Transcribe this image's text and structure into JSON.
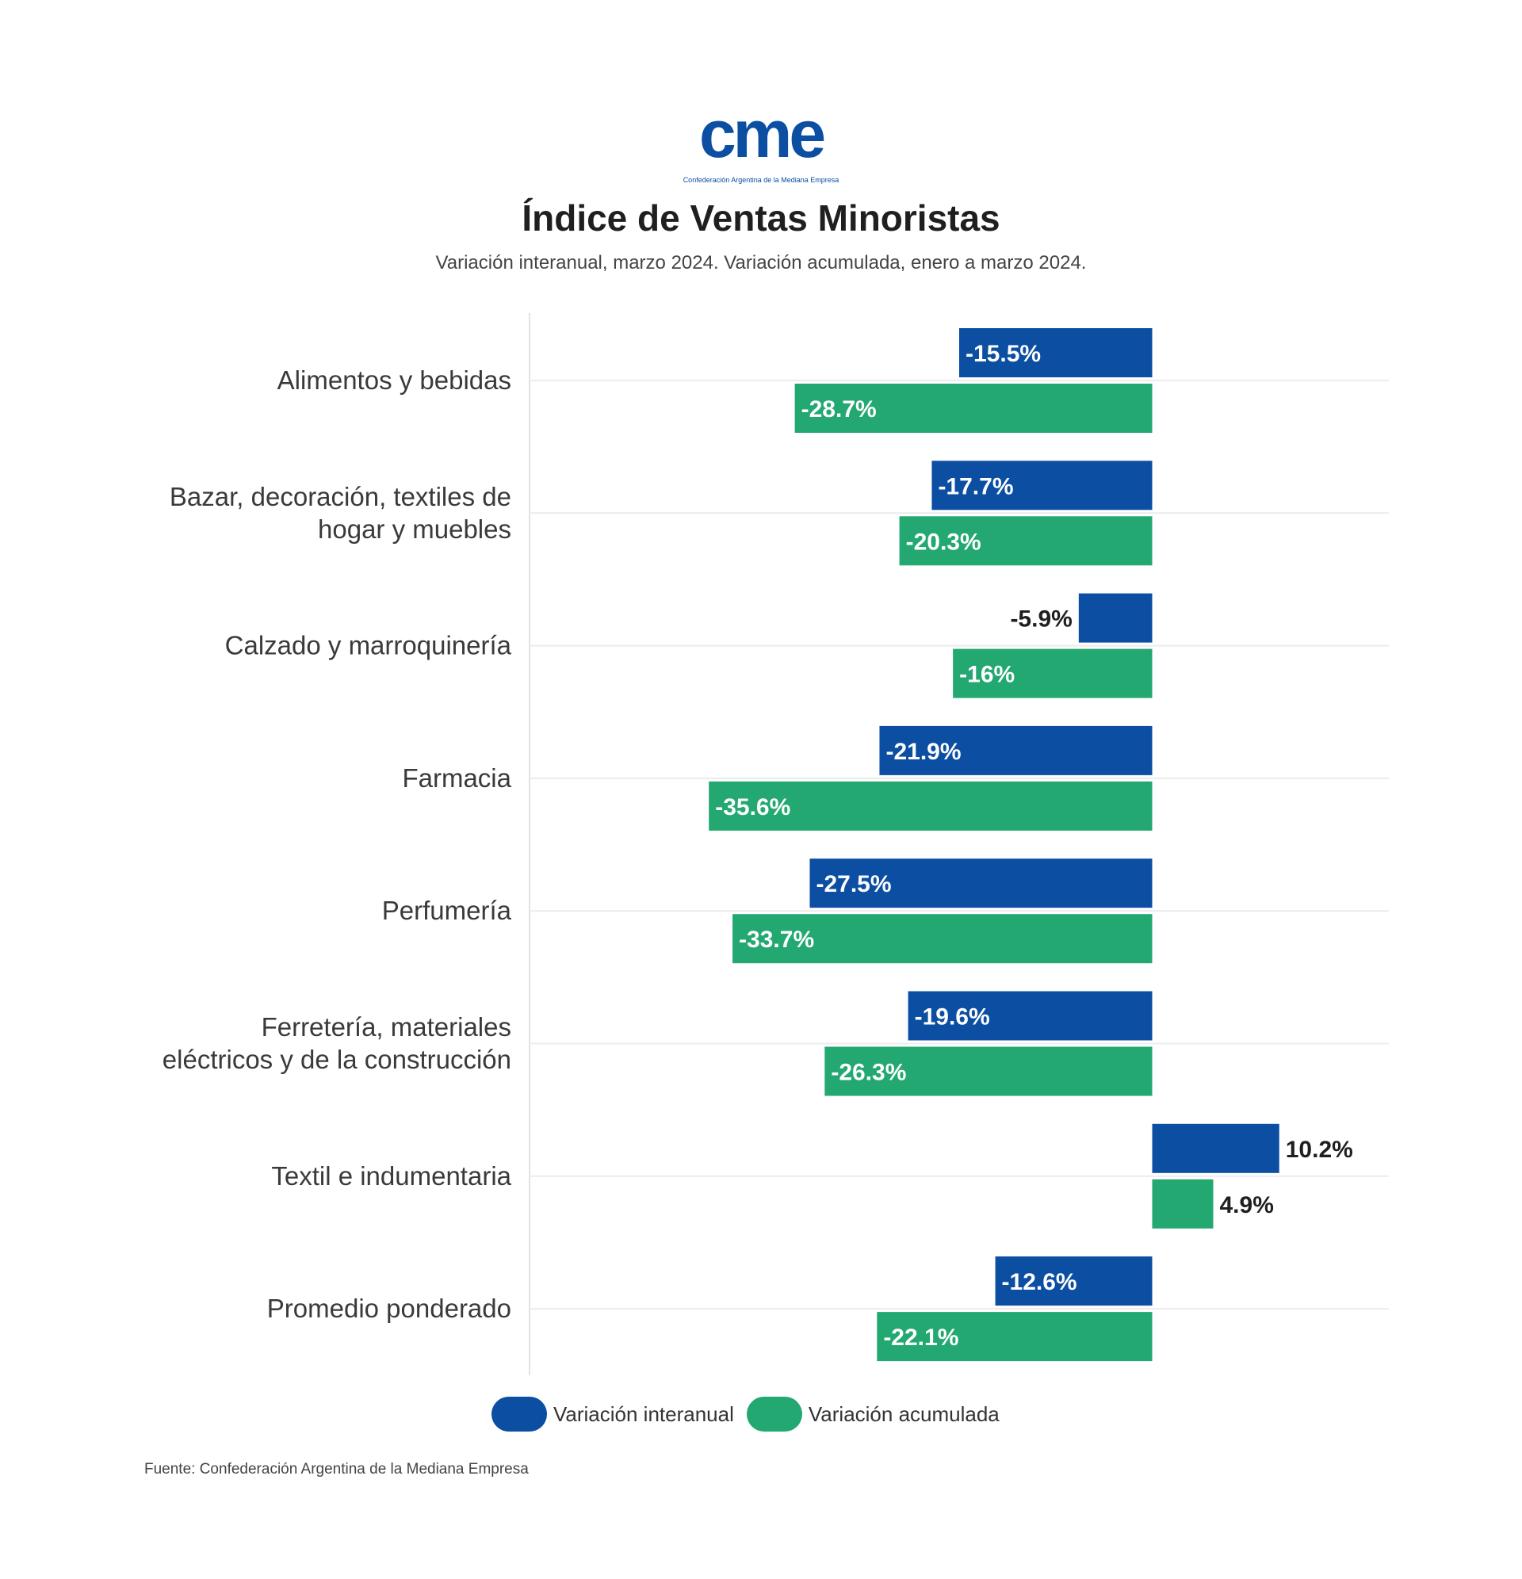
{
  "logo": {
    "mark_text": "cme",
    "org_name": "Confederación Argentina de la Mediana Empresa",
    "color": "#0b4ea2"
  },
  "header": {
    "title": "Índice de Ventas Minoristas",
    "subtitle": "Variación interanual, marzo 2024. Variación acumulada, enero a marzo 2024."
  },
  "legend": {
    "items": [
      {
        "label": "Variación interanual",
        "color": "#0b4ea2"
      },
      {
        "label": "Variación acumulada",
        "color": "#22a870"
      }
    ]
  },
  "source": "Fuente: Confederación Argentina de la Mediana Empresa",
  "chart_data": {
    "type": "bar",
    "orientation": "horizontal",
    "title": "Índice de Ventas Minoristas",
    "categories": [
      [
        "Alimentos y bebidas"
      ],
      [
        "Bazar, decoración, textiles de",
        "hogar y muebles"
      ],
      [
        "Calzado y marroquinería"
      ],
      [
        "Farmacia"
      ],
      [
        "Perfumería"
      ],
      [
        "Ferretería, materiales",
        "eléctricos y de la construcción"
      ],
      [
        "Textil e indumentaria"
      ],
      [
        "Promedio ponderado"
      ]
    ],
    "series": [
      {
        "name": "Variación interanual",
        "color": "#0b4ea2",
        "values": [
          -15.5,
          -17.7,
          -5.9,
          -21.9,
          -27.5,
          -19.6,
          10.2,
          -12.6
        ],
        "labels": [
          "-15.5%",
          "-17.7%",
          "-5.9%",
          "-21.9%",
          "-27.5%",
          "-19.6%",
          "10.2%",
          "-12.6%"
        ]
      },
      {
        "name": "Variación acumulada",
        "color": "#22a870",
        "values": [
          -28.7,
          -20.3,
          -16,
          -35.6,
          -33.7,
          -26.3,
          4.9,
          -22.1
        ],
        "labels": [
          "-28.7%",
          "-20.3%",
          "-16%",
          "-35.6%",
          "-33.7%",
          "-26.3%",
          "4.9%",
          "-22.1%"
        ]
      }
    ],
    "xlim": [
      -50,
      19
    ],
    "grid": true,
    "legend_position": "bottom"
  }
}
